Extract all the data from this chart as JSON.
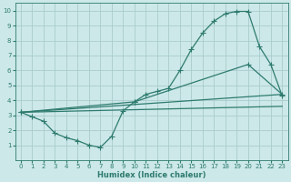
{
  "background_color": "#cce8e8",
  "grid_color": "#aacccc",
  "line_color": "#2e7b6e",
  "xlabel": "Humidex (Indice chaleur)",
  "xlim": [
    -0.5,
    23.5
  ],
  "ylim": [
    0,
    10.5
  ],
  "xticks": [
    0,
    1,
    2,
    3,
    4,
    5,
    6,
    7,
    8,
    9,
    10,
    11,
    12,
    13,
    14,
    15,
    16,
    17,
    18,
    19,
    20,
    21,
    22,
    23
  ],
  "yticks": [
    1,
    2,
    3,
    4,
    5,
    6,
    7,
    8,
    9,
    10
  ],
  "line1_x": [
    0,
    1,
    2,
    3,
    4,
    5,
    6,
    7,
    8,
    9,
    10,
    11,
    12,
    13,
    14,
    15,
    16,
    17,
    18,
    19,
    20,
    21,
    22,
    23
  ],
  "line1_y": [
    3.2,
    2.9,
    2.6,
    1.8,
    1.5,
    1.3,
    1.0,
    0.85,
    1.6,
    3.3,
    3.9,
    4.4,
    4.6,
    4.8,
    6.0,
    7.4,
    8.5,
    9.3,
    9.8,
    9.95,
    9.95,
    7.6,
    6.4,
    4.3
  ],
  "line2_x": [
    0,
    10,
    20,
    23
  ],
  "line2_y": [
    3.2,
    3.9,
    6.4,
    4.4
  ],
  "line3_x": [
    0,
    23
  ],
  "line3_y": [
    3.2,
    4.4
  ],
  "line4_x": [
    0,
    23
  ],
  "line4_y": [
    3.2,
    3.6
  ]
}
